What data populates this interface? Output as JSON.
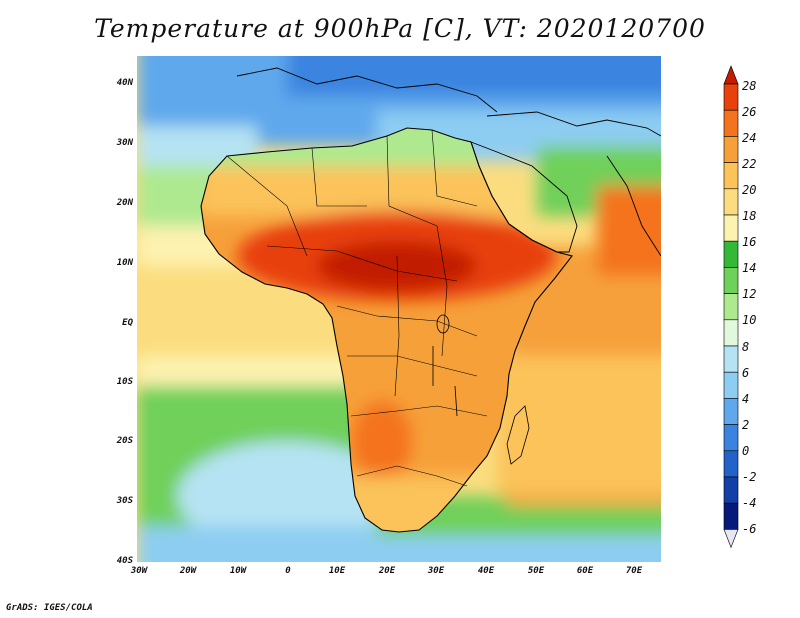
{
  "title": "Temperature at 900hPa [C], VT: 2020120700",
  "credit": "GrADS: IGES/COLA",
  "lat_labels": [
    "40N",
    "30N",
    "20N",
    "10N",
    "EQ",
    "10S",
    "20S",
    "30S",
    "40S"
  ],
  "lon_labels": [
    "30W",
    "20W",
    "10W",
    "0",
    "10E",
    "20E",
    "30E",
    "40E",
    "50E",
    "60E",
    "70E"
  ],
  "colorbar": {
    "labels": [
      "28",
      "26",
      "24",
      "22",
      "20",
      "18",
      "16",
      "14",
      "12",
      "10",
      "8",
      "6",
      "4",
      "2",
      "0",
      "-2",
      "-4",
      "-6"
    ],
    "colors": [
      "#c21b00",
      "#e8410c",
      "#f4731d",
      "#f6a03a",
      "#fbc35a",
      "#fbdd7f",
      "#fdf2b0",
      "#34b837",
      "#6fd05a",
      "#aee98f",
      "#e2f8dd",
      "#b5e3f3",
      "#8ecdf2",
      "#5fa8ec",
      "#3a84e0",
      "#2362c8",
      "#1340a8",
      "#061a7a",
      "#e6e6f5"
    ]
  },
  "map": {
    "ocean_colors": {
      "north_cool": "#5fa8ec",
      "mediterranean": "#8ecdf2",
      "tropical_atlantic": "#fbdd7f",
      "south_atlantic": "#6fd05a",
      "cold_south": "#b5e3f3",
      "indian_ocean": "#f6a03a"
    },
    "land_colors": {
      "sahara_north": "#aee98f",
      "sahara": "#fbc35a",
      "sahel_hot": "#e8410c",
      "central": "#f6a03a",
      "kalahari_hot": "#f4731d",
      "south": "#fbc35a"
    }
  }
}
